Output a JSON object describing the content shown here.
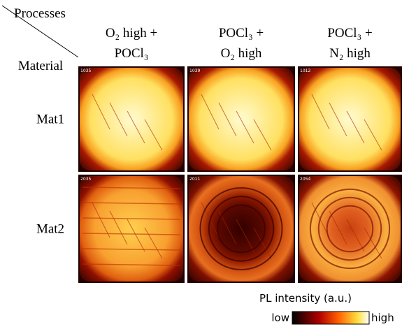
{
  "header": {
    "processes": "Processes",
    "material": "Material"
  },
  "columns": [
    {
      "line1": "O₂ high +",
      "line2": "POCl₃"
    },
    {
      "line1": "POCl₃ +",
      "line2": "O₂ high"
    },
    {
      "line1": "POCl₃ +",
      "line2": "N₂ high"
    }
  ],
  "rows": [
    {
      "label": "Mat1",
      "images": [
        "1035",
        "1039",
        "1012"
      ]
    },
    {
      "label": "Mat2",
      "images": [
        "2035",
        "2011",
        "2054"
      ]
    }
  ],
  "colorbar": {
    "title": "PL intensity (a.u.)",
    "low": "low",
    "high": "high"
  }
}
